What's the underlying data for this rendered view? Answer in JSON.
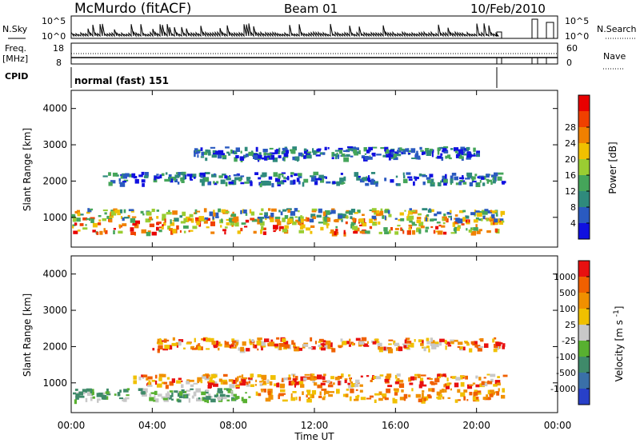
{
  "header": {
    "station": "McMurdo (fitACF)",
    "beam": "Beam 01",
    "date": "10/Feb/2010"
  },
  "sidepanel": {
    "nsky_label": "N.Sky",
    "nsky_ticks": [
      "10^5",
      "10^0"
    ],
    "nsearch_label": "N.Search",
    "nsearch_ticks": [
      "10^5",
      "10^0"
    ],
    "freq_label": "Freq.",
    "freq_unit": "[MHz]",
    "freq_ticks": [
      "18",
      "8"
    ],
    "nave_label": "Nave",
    "nave_ticks": [
      "60",
      "0"
    ],
    "cpid_label": "CPID",
    "cpid_value": "normal (fast) 151"
  },
  "chart_data": [
    {
      "type": "heatmap",
      "xlabel": "Time UT",
      "ylabel": "Slant Range [km]",
      "xticks": [
        "00:00",
        "04:00",
        "08:00",
        "12:00",
        "16:00",
        "20:00",
        "00:00"
      ],
      "xlim": [
        0,
        24
      ],
      "ylim": [
        180,
        4500
      ],
      "yticks": [
        "1000",
        "2000",
        "3000",
        "4000"
      ],
      "colorbar": {
        "label": "Power [dB]",
        "ticks": [
          "4",
          "8",
          "12",
          "16",
          "20",
          "24",
          "28"
        ],
        "colors": [
          "#1010e0",
          "#2a5ac0",
          "#2f8a7c",
          "#45a55a",
          "#9acd32",
          "#f0c000",
          "#f08000",
          "#f04000",
          "#e80000"
        ],
        "range": [
          0,
          30
        ]
      },
      "bands": [
        {
          "range_km": 800,
          "t_start": 0.0,
          "t_end": 21.3,
          "level": "high"
        },
        {
          "range_km": 1100,
          "t_start": 0.0,
          "t_end": 21.3,
          "level": "mid"
        },
        {
          "range_km": 2100,
          "t_start": 1.5,
          "t_end": 21.3,
          "level": "low"
        },
        {
          "range_km": 2800,
          "t_start": 6.0,
          "t_end": 20.0,
          "level": "low"
        }
      ]
    },
    {
      "type": "heatmap",
      "xlabel": "Time UT",
      "ylabel": "Slant Range [km]",
      "xticks": [
        "00:00",
        "04:00",
        "08:00",
        "12:00",
        "16:00",
        "20:00",
        "00:00"
      ],
      "xlim": [
        0,
        24
      ],
      "ylim": [
        180,
        4500
      ],
      "yticks": [
        "1000",
        "2000",
        "3000",
        "4000"
      ],
      "colorbar": {
        "label": "Velocity [m s^-1]",
        "ticks": [
          "1000",
          "500",
          "100",
          "25",
          "-25",
          "-100",
          "-500",
          "-1000"
        ],
        "colors": [
          "#2840c8",
          "#3a70a8",
          "#3f8a6a",
          "#58b030",
          "#c8c8c8",
          "#f0c000",
          "#f09000",
          "#f06000",
          "#e81010"
        ],
        "range": [
          -1000,
          1000
        ]
      },
      "bands": [
        {
          "range_km": 700,
          "t_start": 0.0,
          "t_end": 21.3,
          "level": "mixed"
        },
        {
          "range_km": 1100,
          "t_start": 3.0,
          "t_end": 21.3,
          "level": "negative"
        },
        {
          "range_km": 2100,
          "t_start": 4.0,
          "t_end": 21.3,
          "level": "negative"
        }
      ]
    }
  ]
}
